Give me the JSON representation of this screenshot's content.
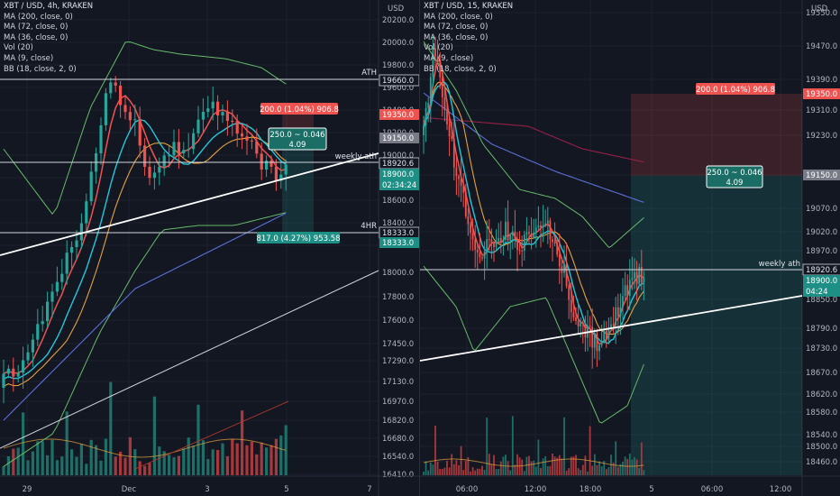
{
  "colors": {
    "bg": "#131722",
    "grid": "#1e2230",
    "axis_text": "#b2b5be",
    "up": "#26a69a",
    "down": "#ef5350",
    "vol_up": "#1f6f69",
    "vol_down": "#a8383b",
    "ma200": "#9c1f4a",
    "ma72": "#5a6fd6",
    "ma36": "#e6a23c",
    "ma9": "#ef5350",
    "bb": "#66bb6a",
    "teal": "#26c6da",
    "white": "#ffffff"
  },
  "charts": [
    {
      "id": "left",
      "legend": [
        "XBT / USD, 4h, KRAKEN",
        "MA (200, close, 0)",
        "MA (72, close, 0)",
        "MA (36, close, 0)",
        "Vol (20)",
        "MA (9, close)",
        "BB (18, close, 2, 0)"
      ],
      "currency": "USD",
      "chart_data": {
        "type": "candlestick",
        "title": "XBT / USD, 4h, KRAKEN",
        "ylim": [
          16400,
          20300
        ],
        "y_ticks": [
          20200.0,
          20000.0,
          19800.0,
          19600.0,
          19400.0,
          19200.0,
          19000.0,
          18800.0,
          18600.0,
          18400.0,
          18200.0,
          18000.0,
          17800.0,
          17600.0,
          17450.0,
          17290.0,
          17130.0,
          16970.0,
          16820.0,
          16680.0,
          16540.0,
          16410.0
        ],
        "x_ticks": [
          "29",
          "Dec",
          "3",
          "5",
          "7"
        ],
        "price_labels": [
          {
            "text": "19660.0",
            "style": "outline"
          },
          {
            "text": "19350.0",
            "style": "red"
          },
          {
            "text": "19150.0",
            "style": "gray"
          },
          {
            "text": "18920.6",
            "style": "outline"
          },
          {
            "text": "18900.0",
            "style": "teal"
          },
          {
            "text": "02:34:24",
            "style": "teal"
          },
          {
            "text": "18333.0",
            "style": "outline"
          },
          {
            "text": "18333.0",
            "style": "teal"
          }
        ],
        "annotations": [
          "ATH",
          "weekly ath",
          "4HR"
        ],
        "position_labels": {
          "risk": "200.0 (1.04%) 906.8",
          "rr_top": "250.0 ~ 0.046",
          "rr_bottom": "4.09",
          "reward": "817.0 (4.27%) 953.58"
        }
      }
    },
    {
      "id": "right",
      "legend": [
        "XBT / USD, 15, KRAKEN",
        "MA (200, close, 0)",
        "MA (72, close, 0)",
        "MA (36, close, 0)",
        "Vol (20)",
        "MA (9, close)",
        "BB (18, close, 2, 0)"
      ],
      "currency": "USD",
      "chart_data": {
        "type": "candlestick",
        "title": "XBT / USD, 15, KRAKEN",
        "ylim": [
          18420,
          19560
        ],
        "y_ticks": [
          19550.0,
          19470.0,
          19390.0,
          19310.0,
          19230.0,
          19150.0,
          19070.0,
          19020.0,
          18970.0,
          18920.0,
          18850.0,
          18790.0,
          18730.0,
          18670.0,
          18620.0,
          18580.0,
          18540.0,
          18500.0,
          18460.0
        ],
        "x_ticks": [
          "06:00",
          "12:00",
          "18:00",
          "5",
          "06:00",
          "12:00"
        ],
        "price_labels": [
          {
            "text": "19350.0",
            "style": "red"
          },
          {
            "text": "19150.0",
            "style": "gray"
          },
          {
            "text": "18920.6",
            "style": "outline"
          },
          {
            "text": "18900.0",
            "style": "teal"
          },
          {
            "text": "04:24",
            "style": "teal"
          }
        ],
        "annotations": [
          "weekly ath"
        ],
        "position_labels": {
          "risk": "200.0 (1.04%) 906.8",
          "rr_top": "250.0 ~ 0.046",
          "rr_bottom": "4.09"
        }
      }
    }
  ]
}
